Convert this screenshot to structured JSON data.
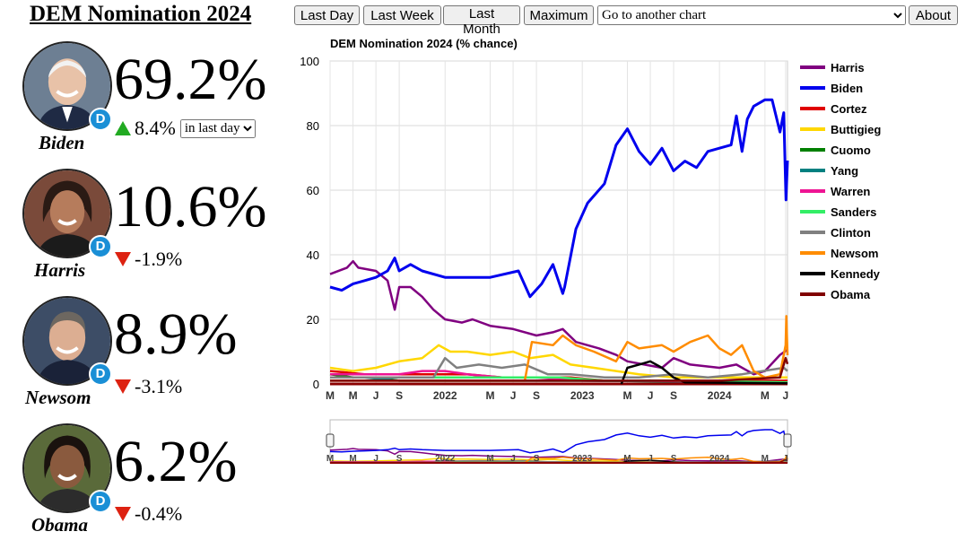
{
  "header": {
    "title": "DEM Nomination 2024",
    "buttons": [
      "Last Day",
      "Last Week",
      "Last Month",
      "Maximum"
    ],
    "chart_select_value": "Go to another chart",
    "about_label": "About"
  },
  "candidates": [
    {
      "name": "Biden",
      "pct": "69.2%",
      "direction": "up",
      "change": "8.4%",
      "party_glyph": "D",
      "period": "in last day"
    },
    {
      "name": "Harris",
      "pct": "10.6%",
      "direction": "down",
      "change": "-1.9%",
      "party_glyph": "D"
    },
    {
      "name": "Newsom",
      "pct": "8.9%",
      "direction": "down",
      "change": "-3.1%",
      "party_glyph": "D"
    },
    {
      "name": "Obama",
      "pct": "6.2%",
      "direction": "down",
      "change": "-0.4%",
      "party_glyph": "D"
    }
  ],
  "colors": {
    "party_badge": "#1a8fd6",
    "up_arrow": "#22aa22",
    "down_arrow": "#dd2211"
  },
  "chart_data": {
    "type": "line",
    "title": "DEM Nomination 2024 (% chance)",
    "xlabel": "",
    "ylabel": "",
    "ylim": [
      0,
      100
    ],
    "yticks": [
      0,
      20,
      40,
      60,
      80,
      100
    ],
    "xlim": [
      "2021-03-01",
      "2024-06-30"
    ],
    "xticks": [
      {
        "date": "2021-03-01",
        "label": "M"
      },
      {
        "date": "2021-05-01",
        "label": "M"
      },
      {
        "date": "2021-07-01",
        "label": "J"
      },
      {
        "date": "2021-09-01",
        "label": "S"
      },
      {
        "date": "2022-01-01",
        "label": "2022"
      },
      {
        "date": "2022-05-01",
        "label": "M"
      },
      {
        "date": "2022-07-01",
        "label": "J"
      },
      {
        "date": "2022-09-01",
        "label": "S"
      },
      {
        "date": "2023-01-01",
        "label": "2023"
      },
      {
        "date": "2023-05-01",
        "label": "M"
      },
      {
        "date": "2023-07-01",
        "label": "J"
      },
      {
        "date": "2023-09-01",
        "label": "S"
      },
      {
        "date": "2024-01-01",
        "label": "2024"
      },
      {
        "date": "2024-05-01",
        "label": "M"
      },
      {
        "date": "2024-06-25",
        "label": "J"
      }
    ],
    "grid": true,
    "legend_position": "right",
    "series": [
      {
        "name": "Harris",
        "color": "#800080",
        "points": [
          [
            "2021-03-01",
            34
          ],
          [
            "2021-04-15",
            36
          ],
          [
            "2021-05-01",
            38
          ],
          [
            "2021-05-15",
            36
          ],
          [
            "2021-07-01",
            35
          ],
          [
            "2021-08-01",
            32
          ],
          [
            "2021-08-20",
            23
          ],
          [
            "2021-09-01",
            30
          ],
          [
            "2021-10-01",
            30
          ],
          [
            "2021-11-01",
            27
          ],
          [
            "2021-12-01",
            23
          ],
          [
            "2022-01-01",
            20
          ],
          [
            "2022-02-15",
            19
          ],
          [
            "2022-03-15",
            20
          ],
          [
            "2022-05-01",
            18
          ],
          [
            "2022-07-01",
            17
          ],
          [
            "2022-09-01",
            15
          ],
          [
            "2022-10-15",
            16
          ],
          [
            "2022-11-10",
            17
          ],
          [
            "2022-12-15",
            13
          ],
          [
            "2023-02-15",
            11
          ],
          [
            "2023-04-01",
            9
          ],
          [
            "2023-05-01",
            7
          ],
          [
            "2023-06-15",
            6
          ],
          [
            "2023-08-01",
            5
          ],
          [
            "2023-09-01",
            8
          ],
          [
            "2023-10-15",
            6
          ],
          [
            "2024-01-01",
            5
          ],
          [
            "2024-02-15",
            6
          ],
          [
            "2024-04-01",
            3
          ],
          [
            "2024-05-01",
            4
          ],
          [
            "2024-06-10",
            9
          ],
          [
            "2024-06-30",
            10.6
          ]
        ]
      },
      {
        "name": "Biden",
        "color": "#0000ee",
        "points": [
          [
            "2021-03-01",
            30
          ],
          [
            "2021-04-01",
            29
          ],
          [
            "2021-05-01",
            31
          ],
          [
            "2021-06-01",
            32
          ],
          [
            "2021-07-01",
            33
          ],
          [
            "2021-08-01",
            35
          ],
          [
            "2021-08-20",
            39
          ],
          [
            "2021-09-01",
            35
          ],
          [
            "2021-10-01",
            37
          ],
          [
            "2021-11-01",
            35
          ],
          [
            "2022-01-01",
            33
          ],
          [
            "2022-03-01",
            33
          ],
          [
            "2022-05-01",
            33
          ],
          [
            "2022-07-15",
            35
          ],
          [
            "2022-08-15",
            27
          ],
          [
            "2022-09-15",
            31
          ],
          [
            "2022-10-15",
            37
          ],
          [
            "2022-11-10",
            28
          ],
          [
            "2022-11-15",
            30
          ],
          [
            "2022-12-15",
            48
          ],
          [
            "2023-01-15",
            56
          ],
          [
            "2023-03-01",
            62
          ],
          [
            "2023-04-01",
            74
          ],
          [
            "2023-05-01",
            79
          ],
          [
            "2023-06-01",
            72
          ],
          [
            "2023-07-01",
            68
          ],
          [
            "2023-08-01",
            73
          ],
          [
            "2023-09-01",
            66
          ],
          [
            "2023-10-01",
            69
          ],
          [
            "2023-11-01",
            67
          ],
          [
            "2023-12-01",
            72
          ],
          [
            "2024-01-01",
            73
          ],
          [
            "2024-02-01",
            74
          ],
          [
            "2024-02-15",
            83
          ],
          [
            "2024-03-01",
            72
          ],
          [
            "2024-03-15",
            82
          ],
          [
            "2024-04-01",
            86
          ],
          [
            "2024-05-01",
            88
          ],
          [
            "2024-05-20",
            88
          ],
          [
            "2024-06-10",
            78
          ],
          [
            "2024-06-20",
            84
          ],
          [
            "2024-06-26",
            57
          ],
          [
            "2024-06-30",
            69.2
          ]
        ]
      },
      {
        "name": "Cortez",
        "color": "#e00000",
        "points": [
          [
            "2021-03-01",
            4
          ],
          [
            "2021-06-01",
            3
          ],
          [
            "2021-09-01",
            3
          ],
          [
            "2021-12-01",
            3
          ],
          [
            "2022-03-01",
            3
          ],
          [
            "2022-06-01",
            2
          ],
          [
            "2022-09-01",
            2
          ],
          [
            "2022-12-01",
            2
          ],
          [
            "2023-03-01",
            1
          ],
          [
            "2023-06-01",
            1
          ],
          [
            "2023-09-01",
            1
          ],
          [
            "2023-12-01",
            1
          ],
          [
            "2024-03-01",
            1
          ],
          [
            "2024-06-30",
            1
          ]
        ]
      },
      {
        "name": "Buttigieg",
        "color": "#ffd700",
        "points": [
          [
            "2021-03-01",
            5
          ],
          [
            "2021-05-01",
            4
          ],
          [
            "2021-07-01",
            5
          ],
          [
            "2021-09-01",
            7
          ],
          [
            "2021-11-01",
            8
          ],
          [
            "2021-12-15",
            12
          ],
          [
            "2022-01-15",
            10
          ],
          [
            "2022-03-01",
            10
          ],
          [
            "2022-05-01",
            9
          ],
          [
            "2022-07-01",
            10
          ],
          [
            "2022-08-15",
            8
          ],
          [
            "2022-10-15",
            9
          ],
          [
            "2022-12-01",
            6
          ],
          [
            "2023-02-01",
            5
          ],
          [
            "2023-04-01",
            4
          ],
          [
            "2023-06-01",
            3
          ],
          [
            "2023-09-01",
            2
          ],
          [
            "2023-12-01",
            2
          ],
          [
            "2024-03-01",
            2
          ],
          [
            "2024-06-30",
            2
          ]
        ]
      },
      {
        "name": "Cuomo",
        "color": "#008000",
        "points": [
          [
            "2021-03-01",
            3
          ],
          [
            "2021-05-01",
            2
          ],
          [
            "2021-07-01",
            2
          ],
          [
            "2021-09-01",
            1
          ],
          [
            "2022-01-01",
            1
          ],
          [
            "2022-06-01",
            1
          ],
          [
            "2023-01-01",
            1
          ],
          [
            "2024-06-30",
            0.5
          ]
        ]
      },
      {
        "name": "Yang",
        "color": "#008080",
        "points": [
          [
            "2021-03-01",
            2
          ],
          [
            "2021-06-01",
            2
          ],
          [
            "2021-09-01",
            1
          ],
          [
            "2022-03-01",
            1
          ],
          [
            "2023-01-01",
            1
          ],
          [
            "2024-06-30",
            0.5
          ]
        ]
      },
      {
        "name": "Warren",
        "color": "#ee1493",
        "points": [
          [
            "2021-03-01",
            3
          ],
          [
            "2021-06-01",
            3
          ],
          [
            "2021-09-01",
            3
          ],
          [
            "2021-11-01",
            4
          ],
          [
            "2022-01-01",
            4
          ],
          [
            "2022-03-01",
            3
          ],
          [
            "2022-06-01",
            2
          ],
          [
            "2022-09-01",
            2
          ],
          [
            "2023-01-01",
            1
          ],
          [
            "2023-06-01",
            1
          ],
          [
            "2024-06-30",
            0.5
          ]
        ]
      },
      {
        "name": "Sanders",
        "color": "#33ee66",
        "points": [
          [
            "2021-03-01",
            2
          ],
          [
            "2021-06-01",
            2
          ],
          [
            "2021-09-01",
            2
          ],
          [
            "2022-01-01",
            2
          ],
          [
            "2022-06-01",
            2
          ],
          [
            "2022-11-01",
            2
          ],
          [
            "2023-03-01",
            1
          ],
          [
            "2023-09-01",
            1
          ],
          [
            "2024-06-30",
            0.5
          ]
        ]
      },
      {
        "name": "Clinton",
        "color": "#808080",
        "points": [
          [
            "2021-03-01",
            2
          ],
          [
            "2021-08-01",
            2
          ],
          [
            "2021-12-01",
            2
          ],
          [
            "2022-01-01",
            8
          ],
          [
            "2022-02-01",
            5
          ],
          [
            "2022-04-01",
            6
          ],
          [
            "2022-06-01",
            5
          ],
          [
            "2022-08-01",
            6
          ],
          [
            "2022-10-01",
            3
          ],
          [
            "2022-12-01",
            3
          ],
          [
            "2023-03-01",
            2
          ],
          [
            "2023-06-01",
            2
          ],
          [
            "2023-09-01",
            3
          ],
          [
            "2023-12-01",
            2
          ],
          [
            "2024-03-01",
            3
          ],
          [
            "2024-06-20",
            5
          ],
          [
            "2024-06-30",
            4
          ]
        ]
      },
      {
        "name": "Newsom",
        "color": "#ff8c00",
        "points": [
          [
            "2021-03-01",
            1
          ],
          [
            "2021-06-01",
            1
          ],
          [
            "2021-09-01",
            1
          ],
          [
            "2022-03-01",
            1
          ],
          [
            "2022-08-01",
            1
          ],
          [
            "2022-08-20",
            13
          ],
          [
            "2022-10-15",
            12
          ],
          [
            "2022-11-10",
            15
          ],
          [
            "2022-12-15",
            12
          ],
          [
            "2023-02-01",
            10
          ],
          [
            "2023-04-01",
            7
          ],
          [
            "2023-05-01",
            13
          ],
          [
            "2023-06-01",
            11
          ],
          [
            "2023-08-01",
            12
          ],
          [
            "2023-09-01",
            10
          ],
          [
            "2023-10-15",
            13
          ],
          [
            "2023-12-01",
            15
          ],
          [
            "2024-01-01",
            11
          ],
          [
            "2024-02-01",
            9
          ],
          [
            "2024-03-01",
            12
          ],
          [
            "2024-04-01",
            4
          ],
          [
            "2024-05-01",
            2
          ],
          [
            "2024-06-10",
            3
          ],
          [
            "2024-06-25",
            12
          ],
          [
            "2024-06-27",
            21
          ],
          [
            "2024-06-30",
            8.9
          ]
        ]
      },
      {
        "name": "Kennedy",
        "color": "#000000",
        "points": [
          [
            "2023-04-15",
            0
          ],
          [
            "2023-05-01",
            5
          ],
          [
            "2023-06-01",
            6
          ],
          [
            "2023-07-01",
            7
          ],
          [
            "2023-08-01",
            5
          ],
          [
            "2023-09-01",
            2
          ],
          [
            "2023-10-01",
            0.5
          ],
          [
            "2024-06-30",
            0.2
          ]
        ]
      },
      {
        "name": "Obama",
        "color": "#800000",
        "points": [
          [
            "2021-03-01",
            1
          ],
          [
            "2022-01-01",
            1
          ],
          [
            "2023-01-01",
            1
          ],
          [
            "2024-01-01",
            1
          ],
          [
            "2024-06-10",
            2
          ],
          [
            "2024-06-25",
            8
          ],
          [
            "2024-06-30",
            6.2
          ]
        ]
      }
    ]
  }
}
